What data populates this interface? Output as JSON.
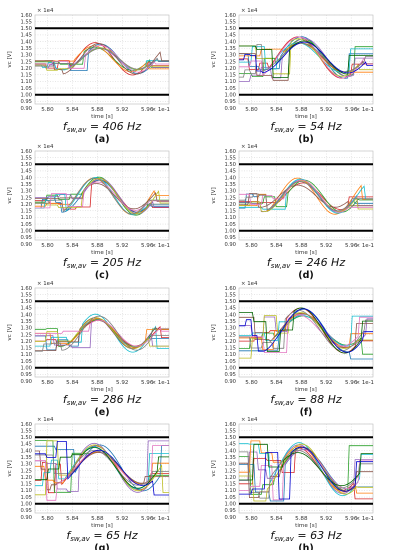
{
  "figure": {
    "panels": [
      {
        "label": "(a)",
        "caption": "f_sw,av = 406 Hz",
        "cap_main": "f",
        "cap_sub": "sw,av",
        "cap_rest": " = 406 Hz"
      },
      {
        "label": "(b)",
        "caption": "f_sw,av = 54 Hz",
        "cap_main": "f",
        "cap_sub": "sw,av",
        "cap_rest": " = 54 Hz"
      },
      {
        "label": "(c)",
        "caption": "f_sw,av = 205 Hz",
        "cap_main": "f",
        "cap_sub": "sw,av",
        "cap_rest": " = 205 Hz"
      },
      {
        "label": "(d)",
        "caption": "f_sw,av = 246 Hz",
        "cap_main": "f",
        "cap_sub": "sw,av",
        "cap_rest": " = 246 Hz"
      },
      {
        "label": "(e)",
        "caption": "f_sw,av = 286 Hz",
        "cap_main": "f",
        "cap_sub": "sw,av",
        "cap_rest": " = 286 Hz"
      },
      {
        "label": "(f)",
        "caption": "f_sw,av = 88 Hz",
        "cap_main": "f",
        "cap_sub": "sw,av",
        "cap_rest": " = 88 Hz"
      },
      {
        "label": "(g)",
        "caption": "f_sw,av = 65 Hz",
        "cap_main": "f",
        "cap_sub": "sw,av",
        "cap_rest": " = 65 Hz"
      },
      {
        "label": "(h)",
        "caption": "f_sw,av = 63 Hz",
        "cap_main": "f",
        "cap_sub": "sw,av",
        "cap_rest": " = 63 Hz"
      }
    ]
  },
  "series_colors": [
    "#d62728",
    "#1f77b4",
    "#2ca02c",
    "#9467bd",
    "#ff7f0e",
    "#17becf",
    "#8c564b",
    "#bcbd22",
    "#e377c2",
    "#7f7f7f",
    "#006400",
    "#0000cd"
  ],
  "limit_color": "#000000",
  "chart_data": [
    {
      "type": "line",
      "ylabel": "vc [V]",
      "xlabel": "time [s]",
      "y_multiplier": "× 1e4",
      "x_multiplier": "× 1e-1",
      "ylim": [
        0.93,
        1.6
      ],
      "xlim": [
        5.78,
        5.995
      ],
      "y_ticks": [
        "1.60",
        "1.55",
        "1.50",
        "1.45",
        "1.40",
        "1.35",
        "1.30",
        "1.25",
        "1.20",
        "1.15",
        "1.10",
        "1.05",
        "1.00",
        "0.95",
        "0.90"
      ],
      "x_ticks": [
        "5.80",
        "5.84",
        "5.88",
        "5.92",
        "5.96"
      ],
      "grid": true,
      "limits": [
        1.5,
        1.0
      ],
      "band": [
        1.18,
        1.26
      ],
      "nominal": {
        "center": 1.27,
        "amplitude": 0.1,
        "peak_x": 5.88,
        "trough_x": 5.94
      },
      "series_count": 10
    },
    {
      "type": "line",
      "ylabel": "vc [V]",
      "xlabel": "time [s]",
      "y_multiplier": "× 1e4",
      "x_multiplier": "× 1e-1",
      "ylim": [
        0.93,
        1.6
      ],
      "xlim": [
        5.78,
        5.995
      ],
      "y_ticks": [
        "1.60",
        "1.55",
        "1.50",
        "1.45",
        "1.40",
        "1.35",
        "1.30",
        "1.25",
        "1.20",
        "1.15",
        "1.10",
        "1.05",
        "1.00",
        "0.95",
        "0.90"
      ],
      "x_ticks": [
        "5.80",
        "5.84",
        "5.88",
        "5.92",
        "5.96"
      ],
      "grid": true,
      "limits": [
        1.5,
        1.0
      ],
      "band": [
        1.1,
        1.38
      ],
      "nominal": {
        "center": 1.28,
        "amplitude": 0.14,
        "peak_x": 5.88,
        "trough_x": 5.95
      },
      "series_count": 12
    },
    {
      "type": "line",
      "ylabel": "vc [V]",
      "xlabel": "time [s]",
      "y_multiplier": "× 1e4",
      "x_multiplier": "× 1e-1",
      "ylim": [
        0.93,
        1.6
      ],
      "xlim": [
        5.78,
        5.995
      ],
      "y_ticks": [
        "1.60",
        "1.55",
        "1.50",
        "1.45",
        "1.40",
        "1.35",
        "1.30",
        "1.25",
        "1.20",
        "1.15",
        "1.10",
        "1.05",
        "1.00",
        "0.95",
        "0.90"
      ],
      "x_ticks": [
        "5.80",
        "5.84",
        "5.88",
        "5.92",
        "5.96"
      ],
      "grid": true,
      "limits": [
        1.5,
        1.0
      ],
      "band": [
        1.16,
        1.28
      ],
      "nominal": {
        "center": 1.26,
        "amplitude": 0.12,
        "peak_x": 5.88,
        "trough_x": 5.94
      },
      "series_count": 10
    },
    {
      "type": "line",
      "ylabel": "vc [V]",
      "xlabel": "time [s]",
      "y_multiplier": "× 1e4",
      "x_multiplier": "× 1e-1",
      "ylim": [
        0.93,
        1.6
      ],
      "xlim": [
        5.78,
        5.995
      ],
      "y_ticks": [
        "1.60",
        "1.55",
        "1.50",
        "1.45",
        "1.40",
        "1.35",
        "1.30",
        "1.25",
        "1.20",
        "1.15",
        "1.10",
        "1.05",
        "1.00",
        "0.95",
        "0.90"
      ],
      "x_ticks": [
        "5.80",
        "5.84",
        "5.88",
        "5.92",
        "5.96"
      ],
      "grid": true,
      "limits": [
        1.5,
        1.0
      ],
      "band": [
        1.16,
        1.28
      ],
      "nominal": {
        "center": 1.26,
        "amplitude": 0.11,
        "peak_x": 5.88,
        "trough_x": 5.94
      },
      "series_count": 10
    },
    {
      "type": "line",
      "ylabel": "vc [V]",
      "xlabel": "time [s]",
      "y_multiplier": "× 1e4",
      "x_multiplier": "× 1e-1",
      "ylim": [
        0.93,
        1.6
      ],
      "xlim": [
        5.78,
        5.995
      ],
      "y_ticks": [
        "1.60",
        "1.55",
        "1.50",
        "1.45",
        "1.40",
        "1.35",
        "1.30",
        "1.25",
        "1.20",
        "1.15",
        "1.10",
        "1.05",
        "1.00",
        "0.95",
        "0.90"
      ],
      "x_ticks": [
        "5.80",
        "5.84",
        "5.88",
        "5.92",
        "5.96"
      ],
      "grid": true,
      "limits": [
        1.5,
        1.0
      ],
      "band": [
        1.12,
        1.3
      ],
      "nominal": {
        "center": 1.26,
        "amplitude": 0.12,
        "peak_x": 5.88,
        "trough_x": 5.94
      },
      "series_count": 10
    },
    {
      "type": "line",
      "ylabel": "vc [V]",
      "xlabel": "time [s]",
      "y_multiplier": "× 1e4",
      "x_multiplier": "× 1e-1",
      "ylim": [
        0.93,
        1.6
      ],
      "xlim": [
        5.78,
        5.995
      ],
      "y_ticks": [
        "1.60",
        "1.55",
        "1.50",
        "1.45",
        "1.40",
        "1.35",
        "1.30",
        "1.25",
        "1.20",
        "1.15",
        "1.10",
        "1.05",
        "1.00",
        "0.95",
        "0.90"
      ],
      "x_ticks": [
        "5.80",
        "5.84",
        "5.88",
        "5.92",
        "5.96"
      ],
      "grid": true,
      "limits": [
        1.5,
        1.0
      ],
      "band": [
        1.06,
        1.42
      ],
      "nominal": {
        "center": 1.28,
        "amplitude": 0.14,
        "peak_x": 5.88,
        "trough_x": 5.95
      },
      "series_count": 12
    },
    {
      "type": "line",
      "ylabel": "vc [V]",
      "xlabel": "time [s]",
      "y_multiplier": "× 1e4",
      "x_multiplier": "× 1e-1",
      "ylim": [
        0.93,
        1.6
      ],
      "xlim": [
        5.78,
        5.995
      ],
      "y_ticks": [
        "1.60",
        "1.55",
        "1.50",
        "1.45",
        "1.40",
        "1.35",
        "1.30",
        "1.25",
        "1.20",
        "1.15",
        "1.10",
        "1.05",
        "1.00",
        "0.95",
        "0.90"
      ],
      "x_ticks": [
        "5.80",
        "5.84",
        "5.88",
        "5.92",
        "5.96"
      ],
      "grid": true,
      "limits": [
        1.5,
        1.0
      ],
      "band": [
        1.02,
        1.48
      ],
      "nominal": {
        "center": 1.27,
        "amplitude": 0.15,
        "peak_x": 5.88,
        "trough_x": 5.95
      },
      "series_count": 12
    },
    {
      "type": "line",
      "ylabel": "vc [V]",
      "xlabel": "time [s]",
      "y_multiplier": "× 1e4",
      "x_multiplier": "× 1e-1",
      "ylim": [
        0.93,
        1.6
      ],
      "xlim": [
        5.78,
        5.995
      ],
      "y_ticks": [
        "1.60",
        "1.55",
        "1.50",
        "1.45",
        "1.40",
        "1.35",
        "1.30",
        "1.25",
        "1.20",
        "1.15",
        "1.10",
        "1.05",
        "1.00",
        "0.95",
        "0.90"
      ],
      "x_ticks": [
        "5.80",
        "5.84",
        "5.88",
        "5.92",
        "5.96"
      ],
      "grid": true,
      "limits": [
        1.5,
        1.0
      ],
      "band": [
        1.02,
        1.48
      ],
      "nominal": {
        "center": 1.26,
        "amplitude": 0.16,
        "peak_x": 5.88,
        "trough_x": 5.95
      },
      "series_count": 12
    }
  ]
}
